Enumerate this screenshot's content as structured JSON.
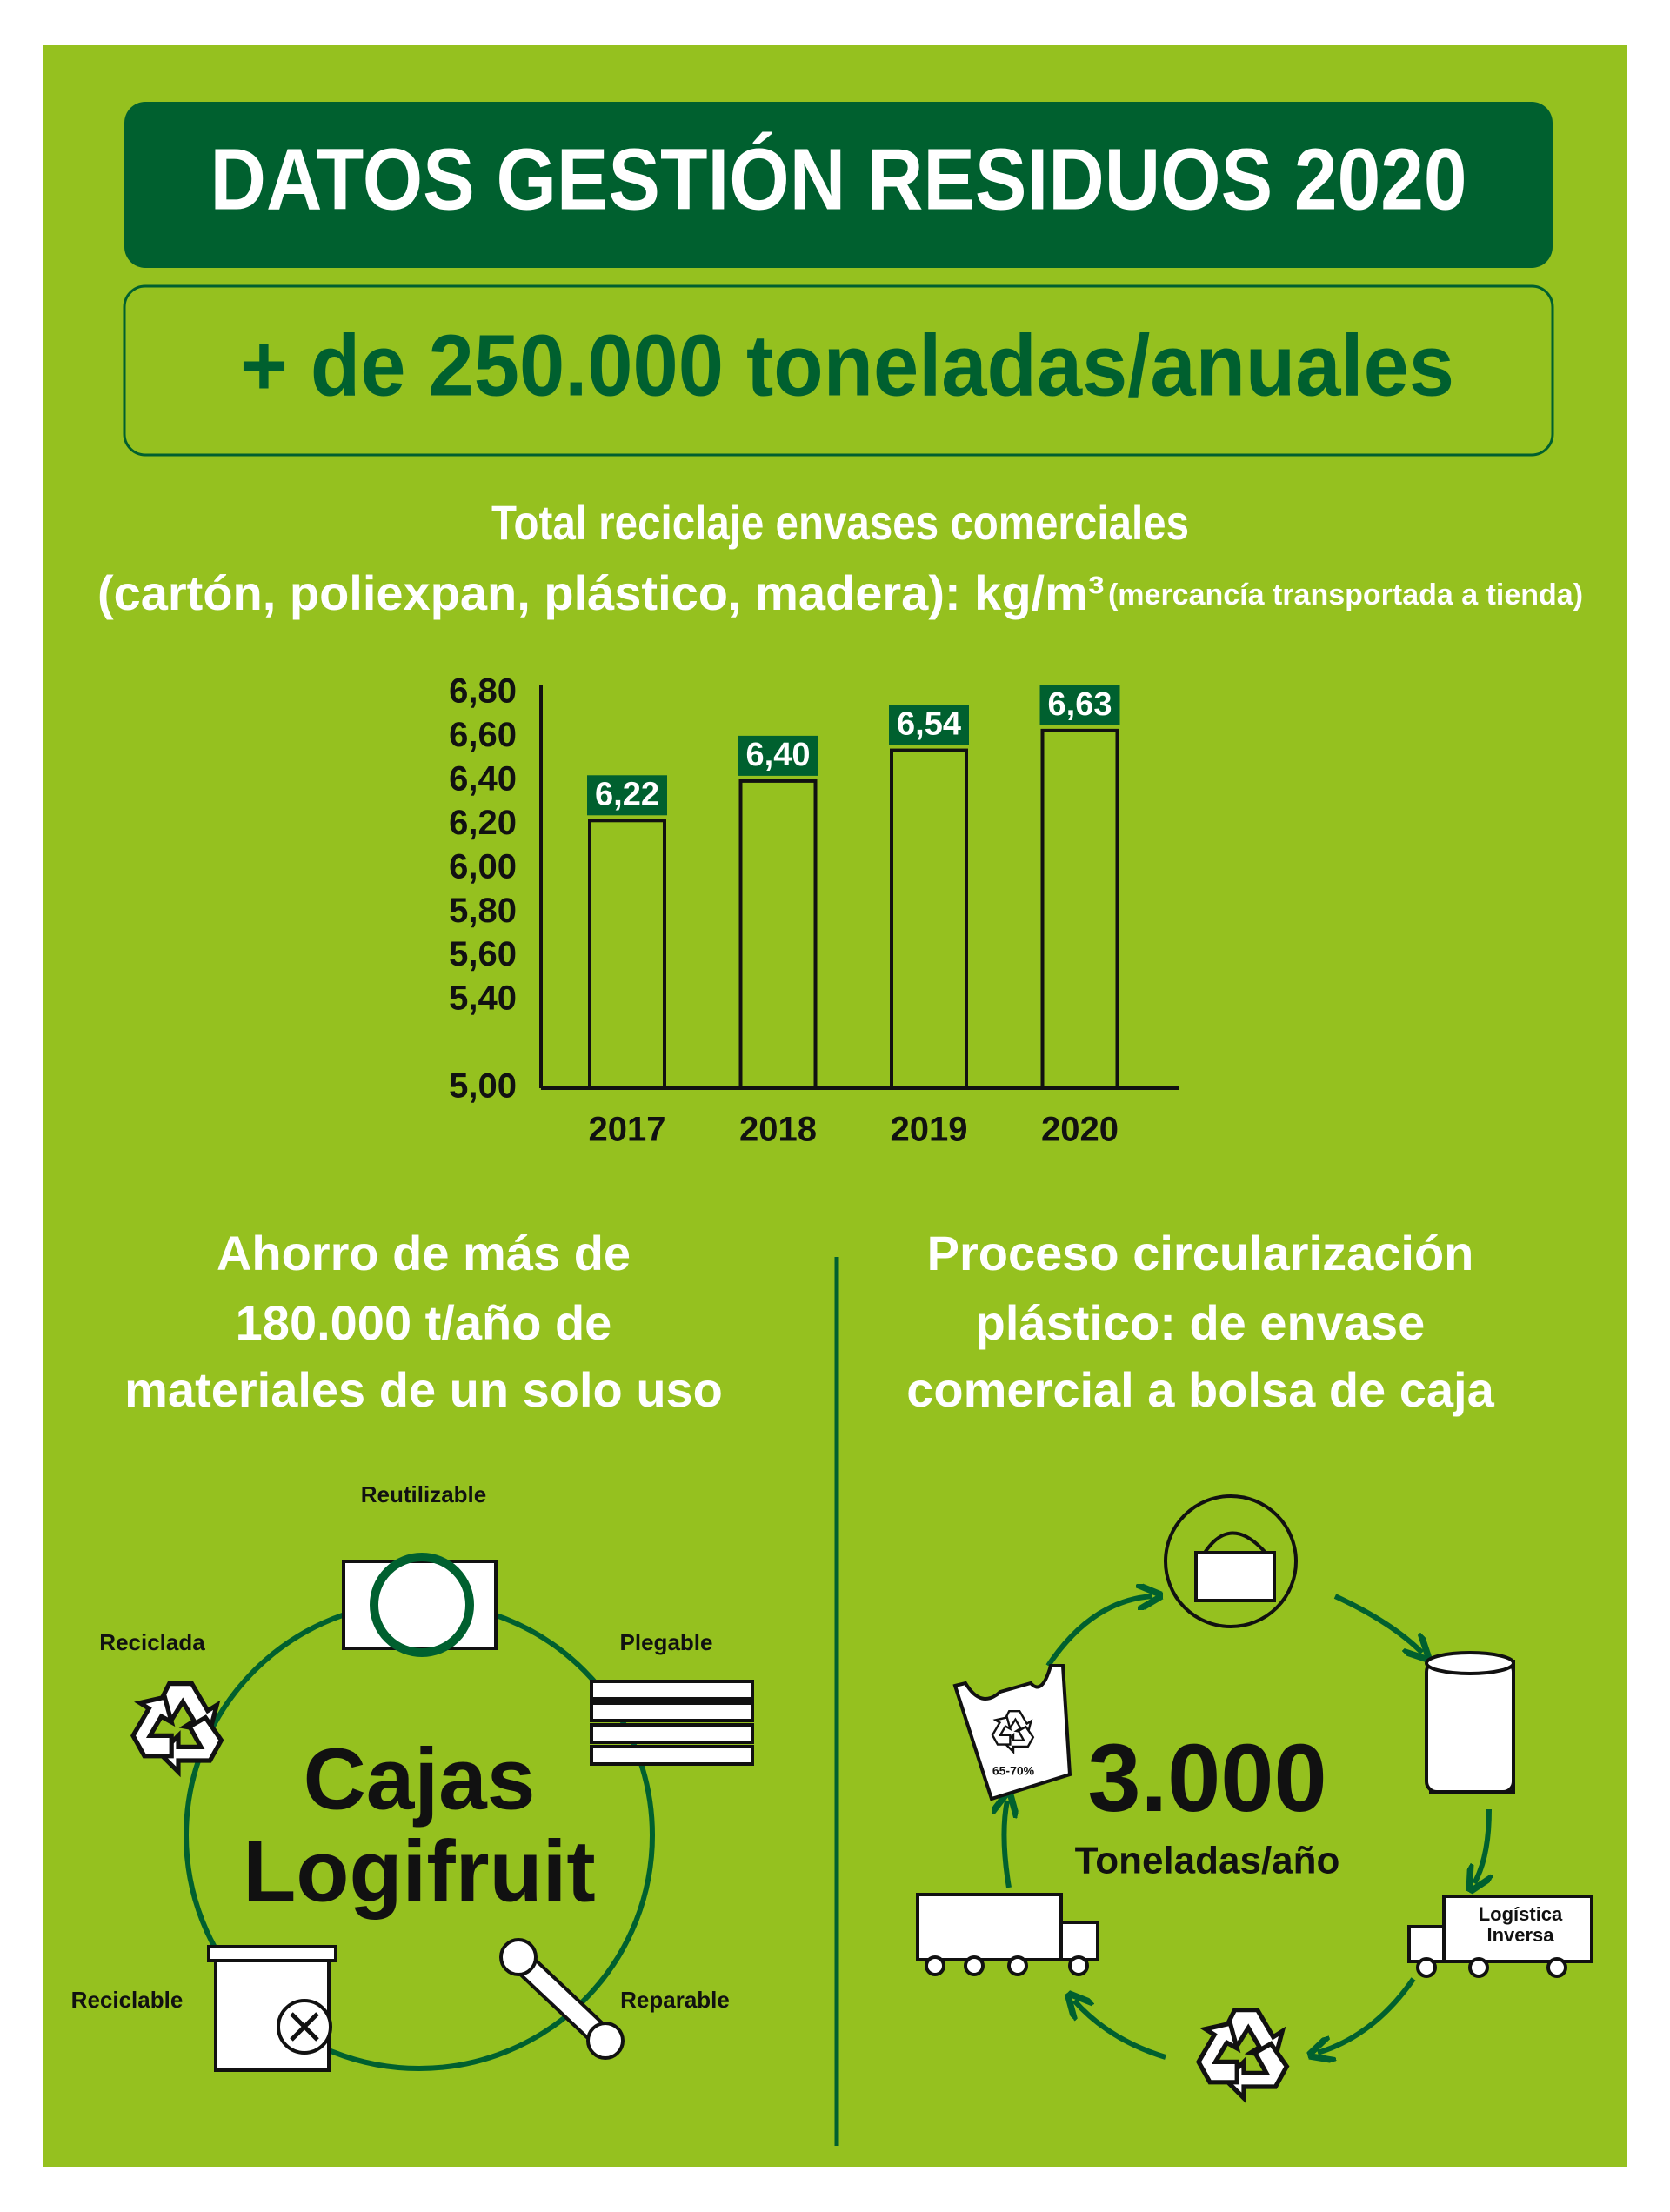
{
  "header": {
    "title": "DATOS GESTIÓN RESIDUOS 2020",
    "subtitle": "+ de 250.000 toneladas/anuales"
  },
  "chart_data": {
    "type": "bar",
    "title": "Total reciclaje envases comerciales",
    "subtitle": "(cartón, poliexpan, plástico, madera): kg/m³",
    "note": "(mercancía transportada a tienda)",
    "categories": [
      "2017",
      "2018",
      "2019",
      "2020"
    ],
    "values": [
      6.22,
      6.4,
      6.54,
      6.63
    ],
    "value_labels": [
      "6,22",
      "6,40",
      "6,54",
      "6,63"
    ],
    "color": "#111111",
    "label_color": "#00602f",
    "ylim": [
      5,
      6.8
    ],
    "yticks": [
      {
        "value": 5,
        "label": "5,00"
      },
      {
        "value": 5.4,
        "label": "5,40"
      },
      {
        "value": 5.6,
        "label": "5,60"
      },
      {
        "value": 5.8,
        "label": "5,80"
      },
      {
        "value": 6,
        "label": "6,00"
      },
      {
        "value": 6.2,
        "label": "6,20"
      },
      {
        "value": 6.4,
        "label": "6,40"
      },
      {
        "value": 6.6,
        "label": "6,60"
      },
      {
        "value": 6.8,
        "label": "6,80"
      }
    ],
    "grid": false
  },
  "left": {
    "heading": [
      "Ahorro de más de",
      "180.000 t/año de",
      "materiales de un solo uso"
    ],
    "center": [
      "Cajas",
      "Logifruit"
    ],
    "labels": [
      "Reutilizable",
      "Plegable",
      "Reparable",
      "Reciclable",
      "Reciclada"
    ]
  },
  "right": {
    "heading": [
      "Proceso circularización",
      "plástico: de envase",
      "comercial a bolsa de caja"
    ],
    "figure": "3.000",
    "unit": "Toneladas/año",
    "truck_label": [
      "Logística",
      "Inversa"
    ],
    "bag_label": "65-70%"
  }
}
